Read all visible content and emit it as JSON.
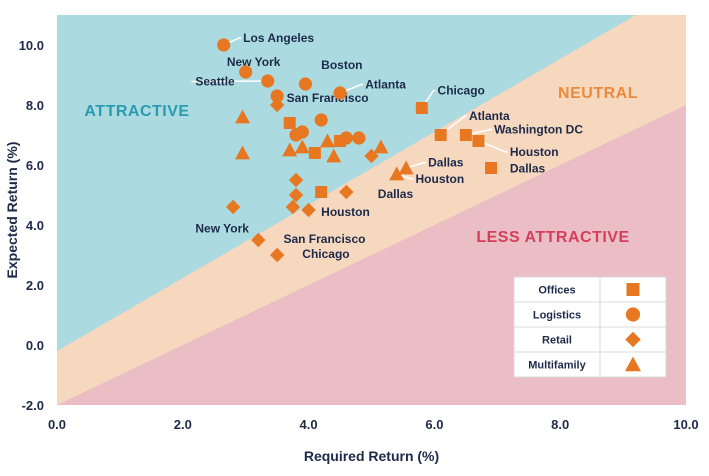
{
  "chart_data": {
    "type": "scatter",
    "xlabel": "Required Return (%)",
    "ylabel": "Expected Return (%)",
    "xlim": [
      0,
      10
    ],
    "ylim": [
      -2,
      11
    ],
    "x_ticks": [
      "0.0",
      "2.0",
      "4.0",
      "6.0",
      "8.0",
      "10.0"
    ],
    "y_ticks": [
      "-2.0",
      "0.0",
      "2.0",
      "4.0",
      "6.0",
      "8.0",
      "10.0"
    ],
    "zones": [
      {
        "name": "ATTRACTIVE",
        "color": "#abdbe0",
        "text_color": "#2a9ab0"
      },
      {
        "name": "NEUTRAL",
        "color": "#f6d8bf",
        "text_color": "#ec8a3c"
      },
      {
        "name": "LESS ATTRACTIVE",
        "color": "#ebbdc4",
        "text_color": "#d4405a"
      }
    ],
    "boundaries": {
      "upper": [
        [
          0,
          -0.2
        ],
        [
          9.2,
          11.0
        ]
      ],
      "lower": [
        [
          0,
          -2.0
        ],
        [
          10.0,
          8.0
        ]
      ]
    },
    "marker_color": "#e87722",
    "series": [
      {
        "name": "Offices",
        "marker": "square",
        "points": [
          [
            3.7,
            7.4
          ],
          [
            4.1,
            6.4
          ],
          [
            4.2,
            5.1
          ],
          [
            4.5,
            6.8
          ],
          [
            5.8,
            7.9
          ],
          [
            6.1,
            7.0
          ],
          [
            6.5,
            7.0
          ],
          [
            6.7,
            6.8
          ],
          [
            6.9,
            5.9
          ]
        ]
      },
      {
        "name": "Logistics",
        "marker": "circle",
        "points": [
          [
            2.65,
            10.0
          ],
          [
            3.0,
            9.1
          ],
          [
            3.35,
            8.8
          ],
          [
            3.5,
            8.3
          ],
          [
            3.95,
            8.7
          ],
          [
            4.5,
            8.4
          ],
          [
            4.2,
            7.5
          ],
          [
            3.9,
            7.1
          ],
          [
            3.8,
            7.0
          ],
          [
            4.6,
            6.9
          ],
          [
            4.8,
            6.9
          ]
        ]
      },
      {
        "name": "Retail",
        "marker": "diamond",
        "points": [
          [
            2.8,
            4.6
          ],
          [
            3.2,
            3.5
          ],
          [
            3.5,
            3.0
          ],
          [
            3.5,
            8.0
          ],
          [
            3.8,
            5.5
          ],
          [
            3.8,
            5.0
          ],
          [
            3.75,
            4.6
          ],
          [
            4.0,
            4.5
          ],
          [
            4.6,
            5.1
          ],
          [
            5.0,
            6.3
          ]
        ]
      },
      {
        "name": "Multifamily",
        "marker": "triangle",
        "points": [
          [
            2.95,
            7.6
          ],
          [
            2.95,
            6.4
          ],
          [
            3.7,
            6.5
          ],
          [
            3.9,
            6.6
          ],
          [
            4.3,
            6.8
          ],
          [
            4.4,
            6.3
          ],
          [
            5.15,
            6.6
          ],
          [
            5.4,
            5.7
          ],
          [
            5.55,
            5.9
          ]
        ]
      }
    ],
    "city_labels": [
      {
        "text": "Los Angeles",
        "x": 2.65,
        "y": 10.0,
        "lx": 2.96,
        "ly": 10.1,
        "line": true
      },
      {
        "text": "New York",
        "x": 3.0,
        "y": 9.1,
        "lx": 2.7,
        "ly": 9.3,
        "line": false
      },
      {
        "text": "Seattle",
        "x": 3.35,
        "y": 8.8,
        "lx": 2.2,
        "ly": 8.65,
        "line": true
      },
      {
        "text": "Boston",
        "x": 3.95,
        "y": 8.7,
        "lx": 4.2,
        "ly": 9.2,
        "line": false
      },
      {
        "text": "Atlanta",
        "x": 4.5,
        "y": 8.4,
        "lx": 4.9,
        "ly": 8.55,
        "line": true
      },
      {
        "text": "San Francisco",
        "x": 3.5,
        "y": 8.0,
        "lx": 3.65,
        "ly": 8.1,
        "line": false
      },
      {
        "text": "Chicago",
        "x": 5.8,
        "y": 7.9,
        "lx": 6.05,
        "ly": 8.35,
        "line": true
      },
      {
        "text": "Atlanta",
        "x": 6.1,
        "y": 7.0,
        "lx": 6.55,
        "ly": 7.5,
        "line": true
      },
      {
        "text": "Washington DC",
        "x": 6.5,
        "y": 7.0,
        "lx": 6.95,
        "ly": 7.05,
        "line": true
      },
      {
        "text": "Houston",
        "x": 6.7,
        "y": 6.8,
        "lx": 7.2,
        "ly": 6.3,
        "line": true
      },
      {
        "text": "Dallas",
        "x": 5.55,
        "y": 5.9,
        "lx": 5.9,
        "ly": 5.95,
        "line": true
      },
      {
        "text": "Houston",
        "x": 5.4,
        "y": 5.7,
        "lx": 5.7,
        "ly": 5.4,
        "line": true
      },
      {
        "text": "Dallas",
        "x": 6.9,
        "y": 5.9,
        "lx": 7.2,
        "ly": 5.75,
        "line": false
      },
      {
        "text": "Dallas",
        "x": 4.6,
        "y": 5.1,
        "lx": 5.1,
        "ly": 4.9,
        "line": false
      },
      {
        "text": "Houston",
        "x": 4.0,
        "y": 4.5,
        "lx": 4.2,
        "ly": 4.3,
        "line": false
      },
      {
        "text": "New York",
        "x": 2.8,
        "y": 4.6,
        "lx": 2.2,
        "ly": 3.75,
        "line": false
      },
      {
        "text": "San Francisco",
        "x": 3.2,
        "y": 3.5,
        "lx": 3.6,
        "ly": 3.4,
        "line": false
      },
      {
        "text": "Chicago",
        "x": 3.5,
        "y": 3.0,
        "lx": 3.9,
        "ly": 2.9,
        "line": false
      }
    ],
    "legend": {
      "placement": "bottom-right",
      "entries": [
        {
          "label": "Offices",
          "marker": "square"
        },
        {
          "label": "Logistics",
          "marker": "circle"
        },
        {
          "label": "Retail",
          "marker": "diamond"
        },
        {
          "label": "Multifamily",
          "marker": "triangle"
        }
      ]
    },
    "grid": false
  }
}
